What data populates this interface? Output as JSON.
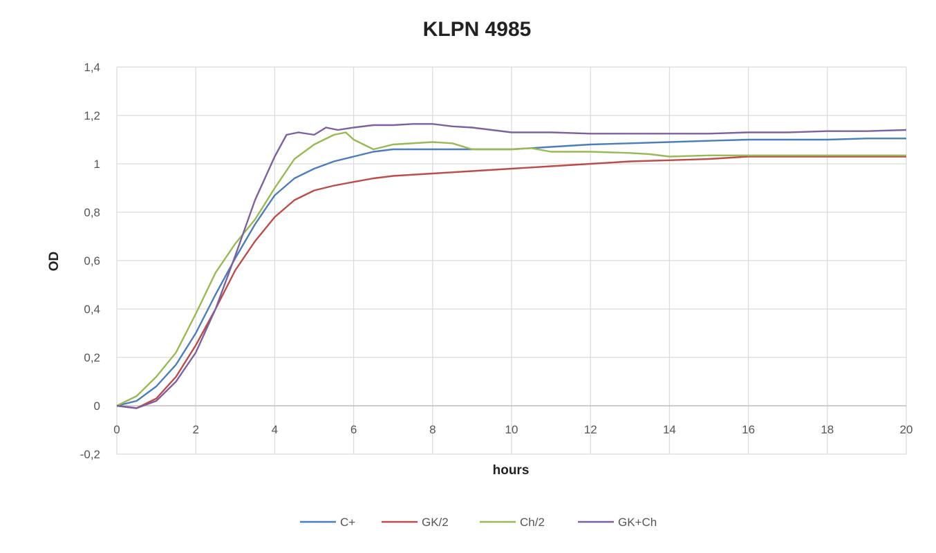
{
  "chart_data": {
    "type": "line",
    "title": "KLPN 4985",
    "xlabel": "hours",
    "ylabel": "OD",
    "xlim": [
      0,
      20
    ],
    "ylim": [
      -0.2,
      1.4
    ],
    "xticks": [
      0,
      2,
      4,
      6,
      8,
      10,
      12,
      14,
      16,
      18,
      20
    ],
    "yticks": [
      -0.2,
      0,
      0.2,
      0.4,
      0.6,
      0.8,
      1,
      1.2,
      1.4
    ],
    "xtick_labels": [
      "0",
      "2",
      "4",
      "6",
      "8",
      "10",
      "12",
      "14",
      "16",
      "18",
      "20"
    ],
    "ytick_labels": [
      "-0,2",
      "0",
      "0,2",
      "0,4",
      "0,6",
      "0,8",
      "1",
      "1,2",
      "1,4"
    ],
    "grid": true,
    "legend_position": "bottom",
    "series": [
      {
        "name": "C+",
        "color": "#4a7ebb",
        "x": [
          0,
          0.5,
          1,
          1.5,
          2,
          2.5,
          3,
          3.5,
          4,
          4.5,
          5,
          5.5,
          6,
          6.5,
          7,
          8,
          9,
          10,
          11,
          12,
          13,
          14,
          15,
          16,
          17,
          18,
          19,
          20
        ],
        "y": [
          0,
          0.02,
          0.08,
          0.17,
          0.3,
          0.46,
          0.61,
          0.75,
          0.87,
          0.94,
          0.98,
          1.01,
          1.03,
          1.05,
          1.06,
          1.06,
          1.06,
          1.06,
          1.07,
          1.08,
          1.085,
          1.09,
          1.095,
          1.1,
          1.1,
          1.1,
          1.105,
          1.105
        ]
      },
      {
        "name": "GK/2",
        "color": "#be4b48",
        "x": [
          0,
          0.5,
          1,
          1.5,
          2,
          2.5,
          3,
          3.5,
          4,
          4.5,
          5,
          5.5,
          6,
          6.5,
          7,
          8,
          9,
          10,
          11,
          12,
          13,
          14,
          15,
          16,
          17,
          18,
          19,
          20
        ],
        "y": [
          0,
          -0.01,
          0.03,
          0.12,
          0.25,
          0.4,
          0.56,
          0.68,
          0.78,
          0.85,
          0.89,
          0.91,
          0.925,
          0.94,
          0.95,
          0.96,
          0.97,
          0.98,
          0.99,
          1.0,
          1.01,
          1.015,
          1.02,
          1.03,
          1.03,
          1.03,
          1.03,
          1.03
        ]
      },
      {
        "name": "Ch/2",
        "color": "#98b954",
        "x": [
          0,
          0.5,
          1,
          1.5,
          2,
          2.5,
          3,
          3.5,
          4,
          4.5,
          5,
          5.5,
          5.8,
          6,
          6.5,
          7,
          8,
          8.5,
          9,
          10,
          10.5,
          11,
          12,
          13,
          13.5,
          14,
          15,
          16,
          18,
          20
        ],
        "y": [
          0,
          0.04,
          0.12,
          0.22,
          0.38,
          0.55,
          0.67,
          0.77,
          0.9,
          1.02,
          1.08,
          1.12,
          1.13,
          1.1,
          1.06,
          1.08,
          1.09,
          1.085,
          1.06,
          1.06,
          1.065,
          1.05,
          1.05,
          1.045,
          1.04,
          1.03,
          1.035,
          1.035,
          1.035,
          1.035
        ]
      },
      {
        "name": "GK+Ch",
        "color": "#7d60a0",
        "x": [
          0,
          0.5,
          1,
          1.5,
          2,
          2.5,
          3,
          3.5,
          4,
          4.3,
          4.6,
          5,
          5.3,
          5.6,
          6,
          6.5,
          7,
          7.5,
          8,
          8.5,
          9,
          9.5,
          10,
          11,
          12,
          13,
          14,
          15,
          16,
          17,
          18,
          19,
          20
        ],
        "y": [
          0,
          -0.01,
          0.02,
          0.1,
          0.22,
          0.4,
          0.62,
          0.85,
          1.03,
          1.12,
          1.13,
          1.12,
          1.15,
          1.14,
          1.15,
          1.16,
          1.16,
          1.165,
          1.165,
          1.155,
          1.15,
          1.14,
          1.13,
          1.13,
          1.125,
          1.125,
          1.125,
          1.125,
          1.13,
          1.13,
          1.135,
          1.135,
          1.14
        ]
      }
    ]
  }
}
